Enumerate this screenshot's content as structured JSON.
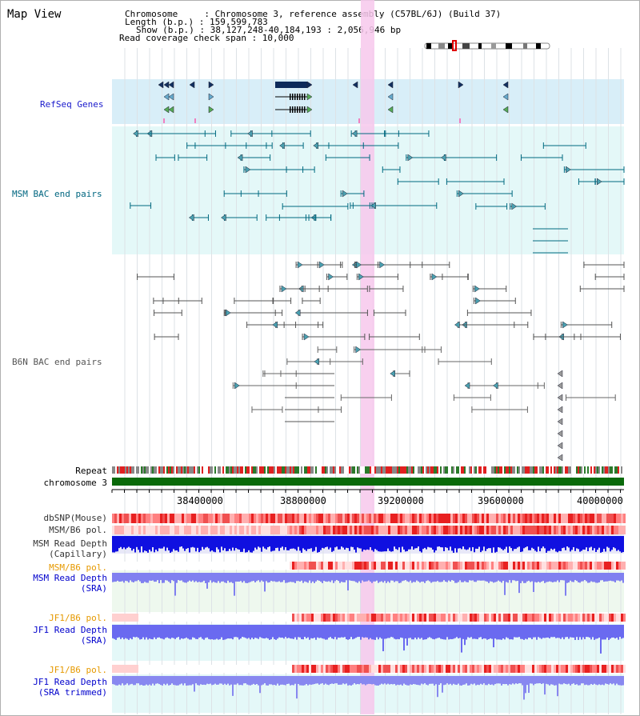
{
  "app_title": "Map View",
  "info": {
    "chromosome": "Chromosome     : Chromosome 3, reference assembly (C57BL/6J) (Build 37)",
    "length": "Length (b.p.) : 159,599,783",
    "show": "Show (b.p.) : 38,127,248-40,184,193 : 2,056,946 bp",
    "span": "Read coverage check span : 10,000"
  },
  "tracks": {
    "refseq": "RefSeq Genes",
    "msm_bac": "MSM BAC end pairs",
    "b6n_bac": "B6N BAC end pairs",
    "repeat": "Repeat",
    "chromosome": "chromosome 3",
    "dbsnp": "dbSNP(Mouse)",
    "msm_b6_pol_1": "MSM/B6 pol.",
    "msm_depth_cap_1": "MSM Read Depth",
    "msm_depth_cap_2": "(Capillary)",
    "msm_b6_pol_2": "MSM/B6 pol.",
    "msm_depth_sra_1": "MSM Read Depth",
    "msm_depth_sra_2": "(SRA)",
    "jf1_pol_1": "JF1/B6 pol.",
    "jf1_depth_1": "JF1 Read Depth",
    "jf1_depth_2": "(SRA)",
    "jf1_pol_2": "JF1/B6 pol.",
    "jf1_trim_1": "JF1 Read Depth",
    "jf1_trim_2": "(SRA trimmed)"
  },
  "ruler": [
    "38400000",
    "38800000",
    "39200000",
    "39600000",
    "40000000"
  ],
  "colors": {
    "refseq_label": "#1a1acc",
    "msm_label": "#006680",
    "b6n_label": "#555555",
    "orange_label": "#e69900",
    "blue_label": "#0000cc",
    "highlight": "#f7c8ec"
  }
}
